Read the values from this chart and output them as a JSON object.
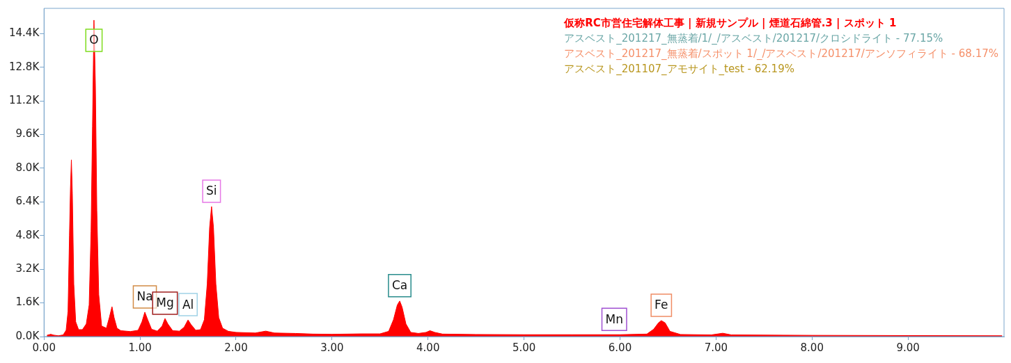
{
  "chart_data": {
    "type": "area",
    "x": [
      0.03,
      0.07,
      0.1,
      0.15,
      0.2,
      0.23,
      0.25,
      0.265,
      0.275,
      0.285,
      0.295,
      0.31,
      0.33,
      0.36,
      0.4,
      0.44,
      0.47,
      0.49,
      0.505,
      0.52,
      0.535,
      0.55,
      0.57,
      0.6,
      0.65,
      0.68,
      0.708,
      0.73,
      0.76,
      0.8,
      0.9,
      0.98,
      1.02,
      1.05,
      1.08,
      1.12,
      1.18,
      1.23,
      1.26,
      1.29,
      1.34,
      1.41,
      1.46,
      1.5,
      1.53,
      1.58,
      1.63,
      1.67,
      1.7,
      1.725,
      1.745,
      1.765,
      1.79,
      1.82,
      1.86,
      1.92,
      2.0,
      2.2,
      2.31,
      2.4,
      2.62,
      2.8,
      3.0,
      3.3,
      3.5,
      3.59,
      3.64,
      3.68,
      3.705,
      3.73,
      3.77,
      3.82,
      3.9,
      3.98,
      4.02,
      4.07,
      4.15,
      4.5,
      5.0,
      5.5,
      6.0,
      6.28,
      6.35,
      6.4,
      6.43,
      6.47,
      6.52,
      6.63,
      6.95,
      7.07,
      7.16,
      8.0,
      9.0,
      9.98
    ],
    "series": [
      {
        "name": "仮称RC市営住宅解体工事 | 新規サンプル | 煙道石綿管.3 | スポット 1",
        "color": "#ff0000",
        "values": [
          60,
          110,
          70,
          40,
          80,
          300,
          1200,
          4800,
          7000,
          8400,
          6800,
          2500,
          700,
          330,
          330,
          600,
          1500,
          5000,
          10000,
          15040,
          12000,
          6000,
          2000,
          500,
          400,
          900,
          1420,
          900,
          400,
          280,
          240,
          300,
          700,
          1160,
          800,
          350,
          260,
          500,
          860,
          600,
          280,
          260,
          450,
          790,
          580,
          300,
          330,
          800,
          2500,
          5200,
          6180,
          5200,
          2500,
          900,
          400,
          250,
          200,
          170,
          260,
          170,
          150,
          120,
          110,
          130,
          130,
          250,
          800,
          1500,
          1690,
          1400,
          600,
          200,
          150,
          200,
          280,
          200,
          120,
          100,
          90,
          90,
          90,
          120,
          350,
          650,
          760,
          650,
          250,
          100,
          80,
          160,
          80,
          60,
          50,
          40
        ]
      }
    ],
    "xlim": [
      0,
      10
    ],
    "xticks": [
      {
        "value": 0,
        "label": "0.00"
      },
      {
        "value": 1,
        "label": "1.00"
      },
      {
        "value": 2,
        "label": "2.00"
      },
      {
        "value": 3,
        "label": "3.00"
      },
      {
        "value": 4,
        "label": "4.00"
      },
      {
        "value": 5,
        "label": "5.00"
      },
      {
        "value": 6,
        "label": "6.00"
      },
      {
        "value": 7,
        "label": "7.00"
      },
      {
        "value": 8,
        "label": "8.00"
      },
      {
        "value": 9,
        "label": "9.00"
      }
    ],
    "ylim": [
      0,
      15600
    ],
    "yticks": [
      {
        "value": 0,
        "label": "0.0K"
      },
      {
        "value": 1600,
        "label": "1.6K"
      },
      {
        "value": 3200,
        "label": "3.2K"
      },
      {
        "value": 4800,
        "label": "4.8K"
      },
      {
        "value": 6400,
        "label": "6.4K"
      },
      {
        "value": 8000,
        "label": "8.0K"
      },
      {
        "value": 9600,
        "label": "9.6K"
      },
      {
        "value": 11200,
        "label": "11.2K"
      },
      {
        "value": 12800,
        "label": "12.8K"
      },
      {
        "value": 14400,
        "label": "14.4K"
      }
    ],
    "legend": "top right",
    "annotations": [
      "アスベスト_201217_無蒸着/1/_/アスベスト/201217/クロシドライト - 77.15%",
      "アスベスト_201217_無蒸着/スポット 1/_/アスベスト/201217/アンソフィライト - 68.17%",
      "アスベスト_201107_アモサイト_test - 62.19%",
      {
        "text": "O",
        "x": 0.52,
        "y": 15040
      },
      {
        "text": "Na",
        "x": 1.05,
        "y": 1160
      },
      {
        "text": "Mg",
        "x": 1.26,
        "y": 860
      },
      {
        "text": "Al",
        "x": 1.5,
        "y": 790
      },
      {
        "text": "Si",
        "x": 1.745,
        "y": 6180
      },
      {
        "text": "Ca",
        "x": 3.705,
        "y": 1690
      },
      {
        "text": "Mn",
        "x": 5.94,
        "y": 90
      },
      {
        "text": "Fe",
        "x": 6.43,
        "y": 760
      }
    ]
  }
}
